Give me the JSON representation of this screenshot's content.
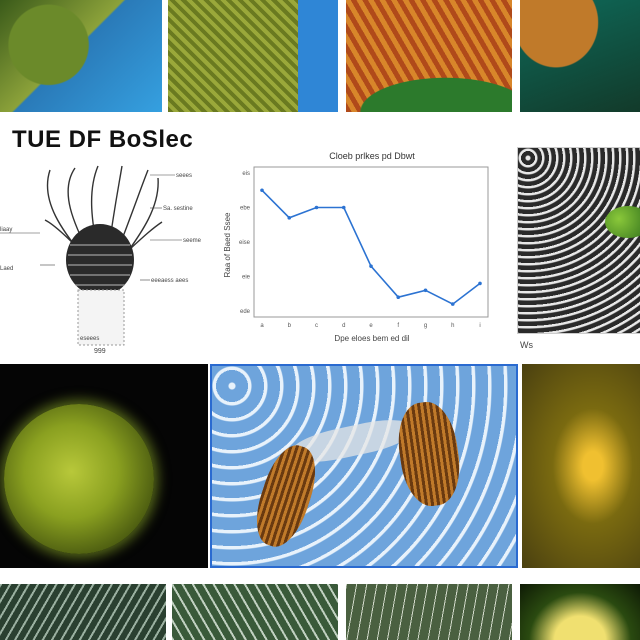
{
  "figure": {
    "title": "TUE DF BoSlec",
    "diagram_labels": [
      "seees",
      "Sa. sestine",
      "seeme",
      "liaay",
      "Laed",
      "eeeaess aees",
      "eseees",
      "999"
    ],
    "mesh_caption": "Ws"
  },
  "chart_data": {
    "type": "line",
    "title": "Cloeb prlkes pd Dbwt",
    "xlabel": "Dpe eloes bem ed dil",
    "ylabel": "Raa of Baed Ssee",
    "x": [
      1,
      2,
      3,
      4,
      5,
      6,
      7,
      8,
      9
    ],
    "x_tick_labels": [
      "a",
      "b",
      "c",
      "d",
      "e",
      "f",
      "g",
      "h",
      "i"
    ],
    "y_tick_labels": [
      "eis",
      "ebe",
      "eise",
      "eie",
      "ede"
    ],
    "series": [
      {
        "values": [
          4.5,
          3.7,
          4.0,
          4.0,
          2.3,
          1.4,
          1.6,
          1.2,
          1.8
        ],
        "color": "#2c73d2"
      }
    ],
    "ylim": [
      1,
      5
    ],
    "grid": false
  }
}
